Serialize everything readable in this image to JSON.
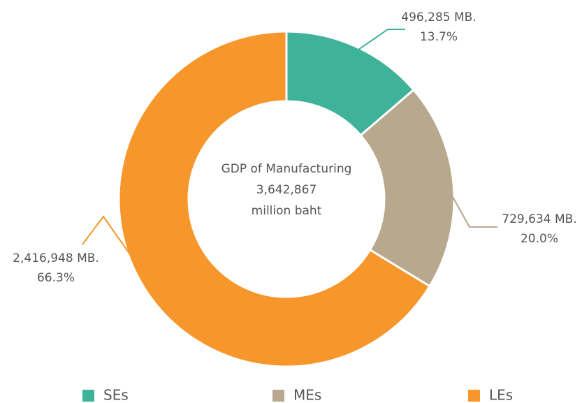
{
  "chart_data": {
    "type": "pie",
    "categories": [
      "SEs",
      "MEs",
      "LEs"
    ],
    "values": [
      13.7,
      20.0,
      66.3
    ],
    "value_labels": [
      "13.7%",
      "20.0%",
      "66.3%"
    ],
    "amount_labels": [
      "496,285 MB.",
      "729,634 MB.",
      "2,416,948 MB."
    ],
    "colors": [
      "#3fb39a",
      "#b8a88e",
      "#f7962a"
    ],
    "center_text": [
      "GDP of Manufacturing",
      "3,642,867",
      "million baht"
    ],
    "legend": "bottom"
  }
}
